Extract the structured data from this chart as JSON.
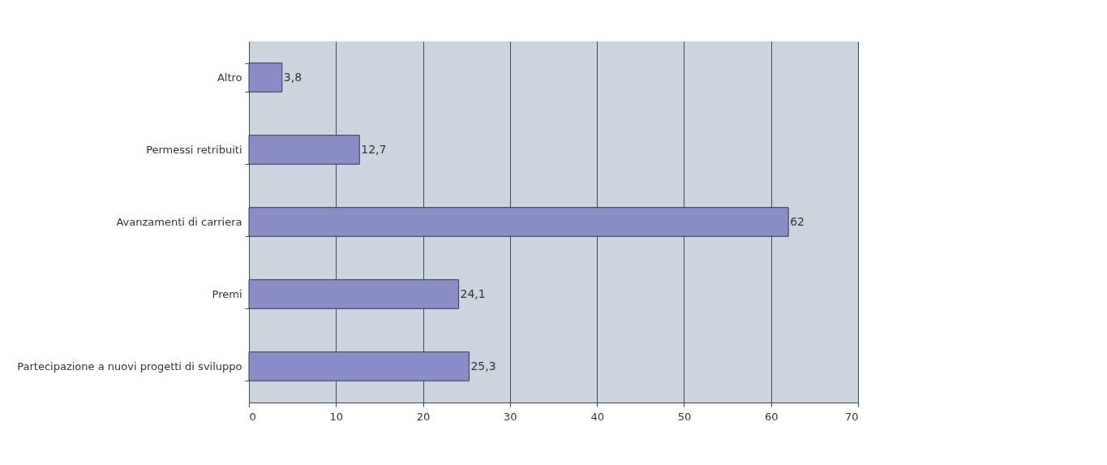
{
  "chart_data": {
    "type": "bar",
    "orientation": "horizontal",
    "categories": [
      "Altro",
      "Permessi retribuiti",
      "Avanzamenti di carriera",
      "Premi",
      "Partecipazione a nuovi progetti di sviluppo"
    ],
    "values": [
      3.8,
      12.7,
      62,
      24.1,
      25.3
    ],
    "value_labels": [
      "3,8",
      "12,7",
      "62",
      "24,1",
      "25,3"
    ],
    "color": "#8b8ec6",
    "xlim": [
      0,
      70
    ],
    "xticks": [
      0,
      10,
      20,
      30,
      40,
      50,
      60,
      70
    ],
    "grid": "x"
  }
}
